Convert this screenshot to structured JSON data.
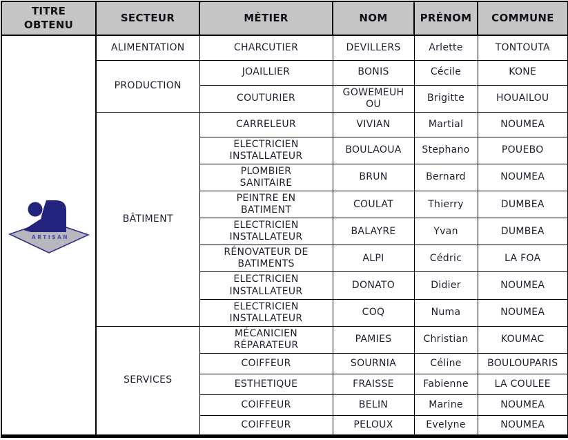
{
  "table": {
    "columns": [
      {
        "key": "titre",
        "label": "TITRE\nOBTENU"
      },
      {
        "key": "secteur",
        "label": "SECTEUR"
      },
      {
        "key": "metier",
        "label": "MÉTIER"
      },
      {
        "key": "nom",
        "label": "NOM"
      },
      {
        "key": "prenom",
        "label": "PRÉNOM"
      },
      {
        "key": "commune",
        "label": "COMMUNE"
      }
    ],
    "logo": {
      "text": "ARTISAN"
    },
    "sections": [
      {
        "secteur": "ALIMENTATION",
        "rows": [
          {
            "metier": "CHARCUTIER",
            "nom": "DEVILLERS",
            "prenom": "Arlette",
            "commune": "TONTOUTA"
          }
        ]
      },
      {
        "secteur": "PRODUCTION",
        "rows": [
          {
            "metier": "JOAILLIER",
            "nom": "BONIS",
            "prenom": "Cécile",
            "commune": "KONE"
          },
          {
            "metier": "COUTURIER",
            "nom": "GOWEMEUHOU",
            "prenom": "Brigitte",
            "commune": "HOUAILOU"
          }
        ]
      },
      {
        "secteur": "BÂTIMENT",
        "rows": [
          {
            "metier": "CARRELEUR",
            "nom": "VIVIAN",
            "prenom": "Martial",
            "commune": "NOUMEA"
          },
          {
            "metier": "ELECTRICIEN INSTALLATEUR",
            "nom": "BOULAOUA",
            "prenom": "Stephano",
            "commune": "POUEBO"
          },
          {
            "metier": "PLOMBIER SANITAIRE",
            "nom": "BRUN",
            "prenom": "Bernard",
            "commune": "NOUMEA"
          },
          {
            "metier": "PEINTRE EN BATIMENT",
            "nom": "COULAT",
            "prenom": "Thierry",
            "commune": "DUMBEA"
          },
          {
            "metier": "ELECTRICIEN INSTALLATEUR",
            "nom": "BALAYRE",
            "prenom": "Yvan",
            "commune": "DUMBEA"
          },
          {
            "metier": "RÉNOVATEUR DE BATIMENTS",
            "nom": "ALPI",
            "prenom": "Cédric",
            "commune": "LA FOA"
          },
          {
            "metier": "ELECTRICIEN INSTALLATEUR",
            "nom": "DONATO",
            "prenom": "Didier",
            "commune": "NOUMEA"
          },
          {
            "metier": "ELECTRICIEN INSTALLATEUR",
            "nom": "COQ",
            "prenom": "Numa",
            "commune": "NOUMEA"
          }
        ]
      },
      {
        "secteur": "SERVICES",
        "rows": [
          {
            "metier": "MÉCANICIEN RÉPARATEUR",
            "nom": "PAMIES",
            "prenom": "Christian",
            "commune": "KOUMAC"
          },
          {
            "metier": "COIFFEUR",
            "nom": "SOURNIA",
            "prenom": "Céline",
            "commune": "BOULOUPARIS"
          },
          {
            "metier": "ESTHETIQUE",
            "nom": "FRAISSE",
            "prenom": "Fabienne",
            "commune": "LA COULEE"
          },
          {
            "metier": "COIFFEUR",
            "nom": "BELIN",
            "prenom": "Marine",
            "commune": "NOUMEA"
          },
          {
            "metier": "COIFFEUR",
            "nom": "PELOUX",
            "prenom": "Evelyne",
            "commune": "NOUMEA"
          }
        ]
      }
    ]
  },
  "colors": {
    "header-bg": "#c6c6c6",
    "header-text": "#111118",
    "body-text": "#1e1e2f",
    "grid": "#000000",
    "logo-navy": "#23237e",
    "logo-diamond-fill": "#b7b7bd",
    "logo-diamond-stroke": "#31318c",
    "logo-text": "#4a4aab"
  }
}
